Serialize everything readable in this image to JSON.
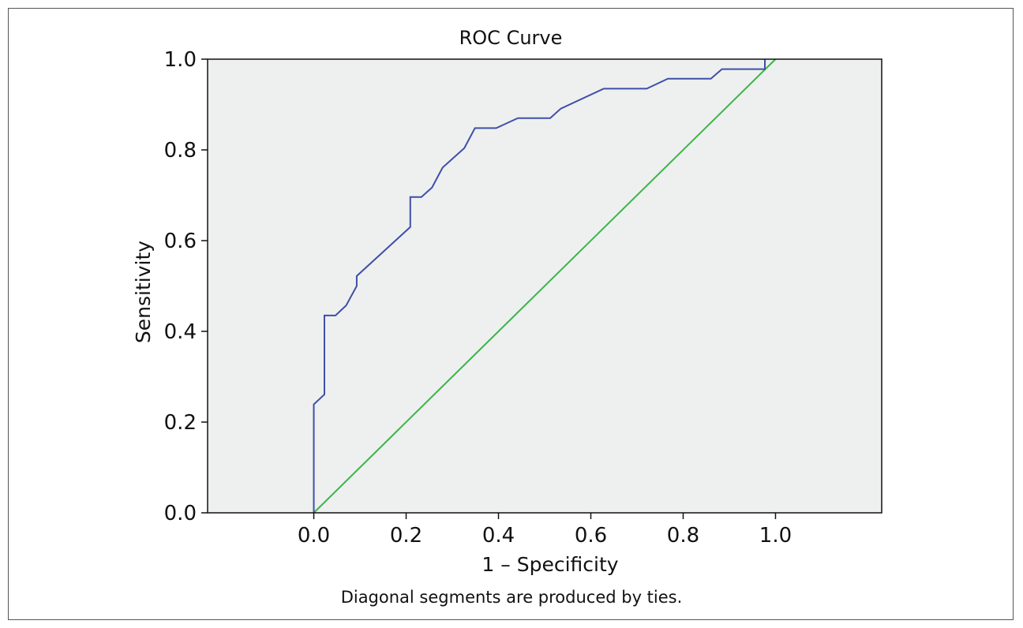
{
  "chart_data": {
    "type": "line",
    "title": "ROC Curve",
    "xlabel": "1 – Specificity",
    "ylabel": "Sensitivity",
    "footnote": "Diagonal segments are produced by ties.",
    "xlim": [
      -0.23,
      1.23
    ],
    "ylim": [
      0.0,
      1.0
    ],
    "xticks": [
      0.0,
      0.2,
      0.4,
      0.6,
      0.8,
      1.0
    ],
    "yticks": [
      0.0,
      0.2,
      0.4,
      0.6,
      0.8,
      1.0
    ],
    "xtick_labels": [
      "0.0",
      "0.2",
      "0.4",
      "0.6",
      "0.8",
      "1.0"
    ],
    "ytick_labels": [
      "0.0",
      "0.2",
      "0.4",
      "0.6",
      "0.8",
      "1.0"
    ],
    "grid": false,
    "plot_background": "#eef0ef",
    "series": [
      {
        "color": "#3f4fa8",
        "x": [
          0.0,
          0.0,
          0.023,
          0.023,
          0.047,
          0.07,
          0.093,
          0.093,
          0.209,
          0.209,
          0.233,
          0.256,
          0.279,
          0.326,
          0.349,
          0.395,
          0.442,
          0.512,
          0.535,
          0.628,
          0.721,
          0.767,
          0.86,
          0.884,
          0.977,
          0.977
        ],
        "y": [
          0.0,
          0.239,
          0.261,
          0.435,
          0.435,
          0.457,
          0.5,
          0.522,
          0.63,
          0.696,
          0.696,
          0.717,
          0.761,
          0.804,
          0.848,
          0.848,
          0.87,
          0.87,
          0.891,
          0.935,
          0.935,
          0.957,
          0.957,
          0.978,
          0.978,
          1.0
        ]
      },
      {
        "color": "#3bb54a",
        "x": [
          0.0,
          1.0
        ],
        "y": [
          0.0,
          1.0
        ]
      }
    ]
  }
}
